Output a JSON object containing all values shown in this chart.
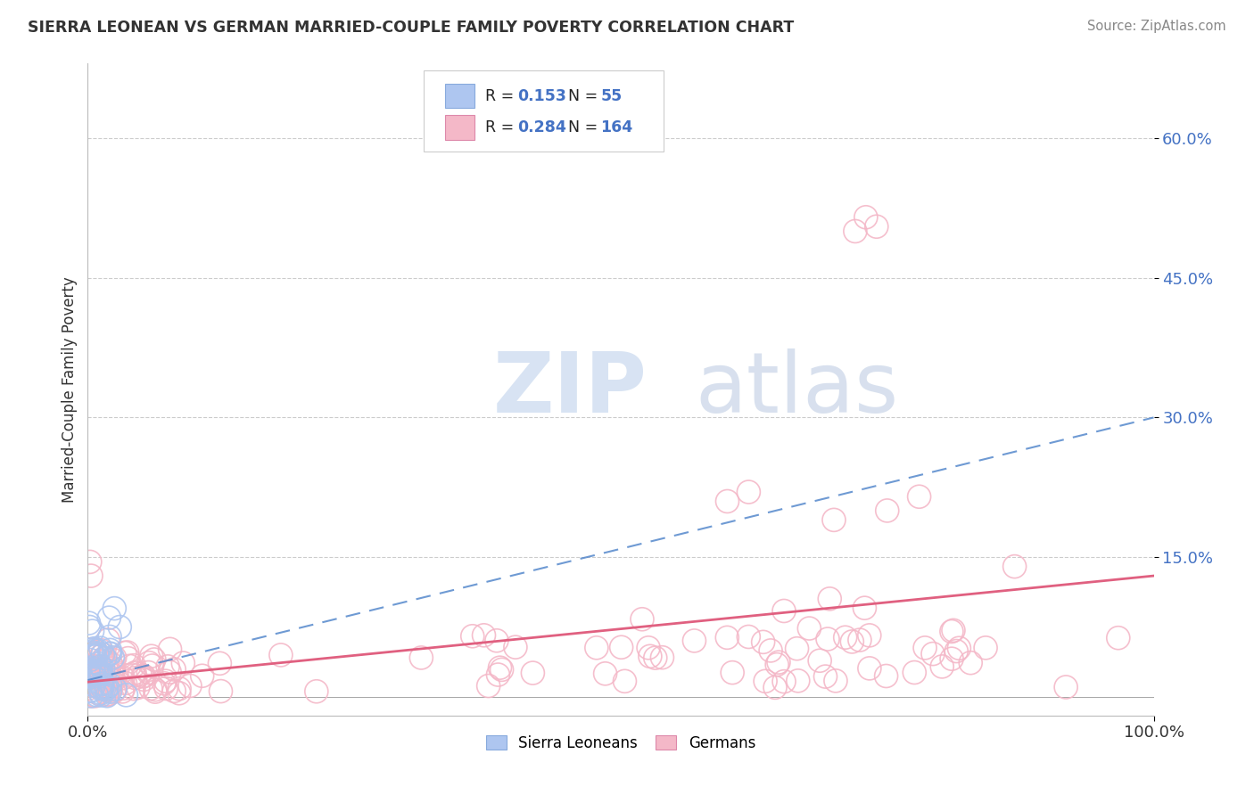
{
  "title": "SIERRA LEONEAN VS GERMAN MARRIED-COUPLE FAMILY POVERTY CORRELATION CHART",
  "source": "Source: ZipAtlas.com",
  "ylabel": "Married-Couple Family Poverty",
  "ytick_labels": [
    "15.0%",
    "30.0%",
    "45.0%",
    "60.0%"
  ],
  "ytick_values": [
    0.15,
    0.3,
    0.45,
    0.6
  ],
  "xlim": [
    0.0,
    1.0
  ],
  "ylim": [
    -0.02,
    0.68
  ],
  "legend_labels": [
    "Sierra Leoneans",
    "Germans"
  ],
  "sl_color": "#aec6f0",
  "de_color": "#f4b8c8",
  "sl_line_color": "#5588cc",
  "de_line_color": "#e06080",
  "watermark1": "ZIP",
  "watermark2": "atlas",
  "background_color": "#ffffff",
  "grid_color": "#cccccc",
  "R_sl": "0.153",
  "N_sl": "55",
  "R_de": "0.284",
  "N_de": "164"
}
